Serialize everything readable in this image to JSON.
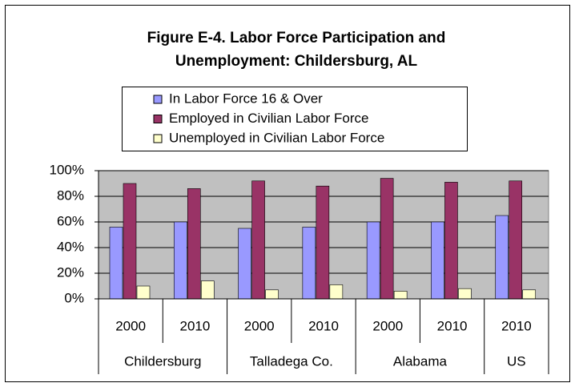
{
  "chart_data": {
    "type": "bar",
    "title_lines": [
      "Figure E-4. Labor Force Participation and",
      "Unemployment: Childersburg, AL"
    ],
    "categories": [
      "2000",
      "2010",
      "2000",
      "2010",
      "2000",
      "2010",
      "2010"
    ],
    "groups": [
      {
        "label": "Childersburg",
        "count": 2
      },
      {
        "label": "Talladega Co.",
        "count": 2
      },
      {
        "label": "Alabama",
        "count": 2
      },
      {
        "label": "US",
        "count": 1
      }
    ],
    "series": [
      {
        "name": "In Labor Force 16 & Over",
        "color": "#9999ff",
        "values": [
          56,
          60,
          55,
          56,
          60,
          60,
          65
        ]
      },
      {
        "name": "Employed in Civilian Labor Force",
        "color": "#993366",
        "values": [
          90,
          86,
          92,
          88,
          94,
          91,
          92
        ]
      },
      {
        "name": "Unemployed in Civilian Labor Force",
        "color": "#ffffcc",
        "values": [
          10,
          14,
          7,
          11,
          6,
          8,
          7
        ]
      }
    ],
    "ylim": [
      0,
      100
    ],
    "yticks": [
      {
        "value": 0,
        "label": "0%"
      },
      {
        "value": 20,
        "label": "20%"
      },
      {
        "value": 40,
        "label": "40%"
      },
      {
        "value": 60,
        "label": "60%"
      },
      {
        "value": 80,
        "label": "80%"
      },
      {
        "value": 100,
        "label": "100%"
      }
    ],
    "grid": true,
    "plot_background": "#c0c0c0",
    "legend": "top"
  }
}
